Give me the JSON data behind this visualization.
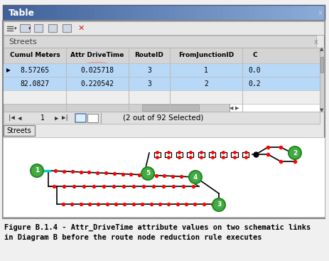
{
  "title": "Table",
  "subtitle": "Streets",
  "col_labels": [
    "Cumul Meters",
    "Attr DriveTime",
    "RouteID",
    "FromJunctionID",
    "C"
  ],
  "rows": [
    [
      "8.57265",
      "0.025718",
      "3",
      "1",
      "0.0"
    ],
    [
      "82.0827",
      "0.220542",
      "3",
      "2",
      "0.2"
    ],
    [
      "",
      "",
      "",
      "",
      ""
    ]
  ],
  "footer_text": "(2 out of 92 Selected)",
  "tab_label": "Streets",
  "caption": "Figure B.1.4 - Attr_DriveTime attribute values on two schematic links\nin Diagram B before the route node reduction rule executes",
  "bg_color": "#f0f0f0",
  "selected_bg": "#b8d8f8",
  "dot_color": "#ff0000",
  "line_color": "#000000",
  "cyan_line_color": "#00cccc",
  "node_color": "#44aa44",
  "node_edge_color": "#228822"
}
